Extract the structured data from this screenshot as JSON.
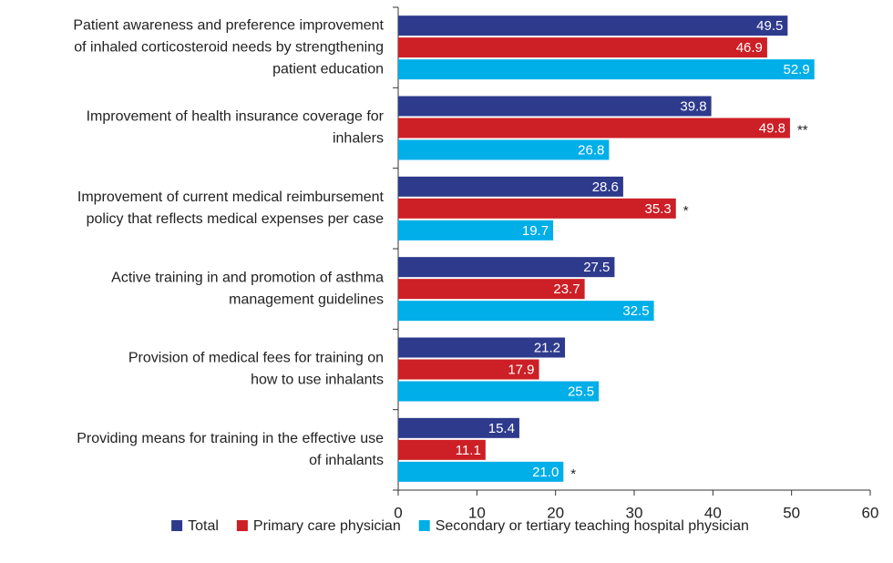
{
  "chart_data": {
    "type": "bar",
    "orientation": "horizontal",
    "categories": [
      [
        "Patient awareness and preference improvement",
        "of inhaled corticosteroid needs by strengthening",
        "patient education"
      ],
      [
        "Improvement of health insurance coverage for",
        "inhalers"
      ],
      [
        "Improvement of current medical reimbursement",
        "policy that reflects medical expenses per case"
      ],
      [
        "Active training in and promotion of asthma",
        "management guidelines"
      ],
      [
        "Provision of medical fees for training on",
        "how to use inhalants"
      ],
      [
        "Providing means for training in the effective use",
        "of inhalants"
      ]
    ],
    "series": [
      {
        "name": "Total",
        "color": "#2e3a8c",
        "values": [
          49.5,
          39.8,
          28.6,
          27.5,
          21.2,
          15.4
        ]
      },
      {
        "name": "Primary care physician",
        "color": "#cc1f26",
        "values": [
          46.9,
          49.8,
          35.3,
          23.7,
          17.9,
          11.1
        ],
        "notes": [
          null,
          "**",
          "*",
          null,
          null,
          null
        ]
      },
      {
        "name": "Secondary or tertiary teaching hospital physician",
        "color": "#00aee8",
        "values": [
          52.9,
          26.8,
          19.7,
          32.5,
          25.5,
          21.0
        ],
        "value_labels": [
          "52.9",
          "26.8",
          "19.7",
          "32.5",
          "25.5",
          "21.0"
        ],
        "notes": [
          null,
          null,
          null,
          null,
          null,
          "*"
        ]
      }
    ],
    "xlim": [
      0,
      60
    ],
    "xticks": [
      0,
      10,
      20,
      30,
      40,
      50,
      60
    ],
    "legend": "bottom"
  }
}
